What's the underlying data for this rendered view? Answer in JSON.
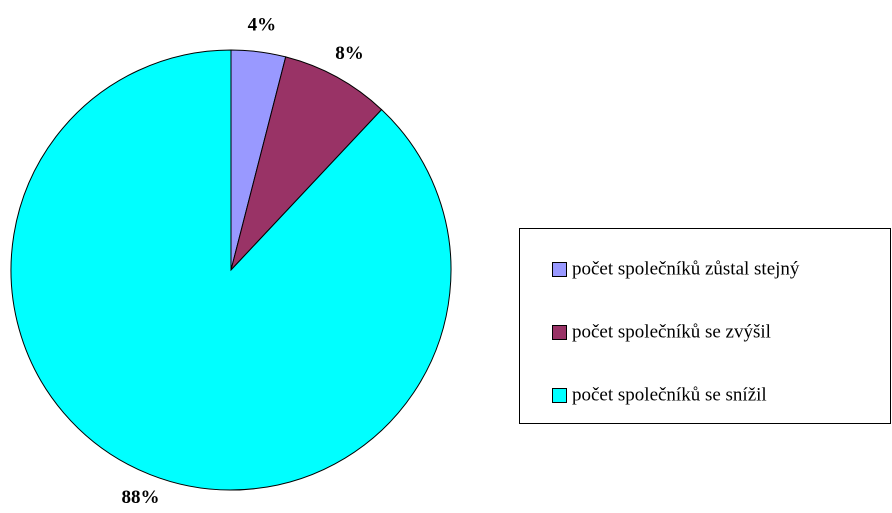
{
  "chart_data": {
    "type": "pie",
    "categories": [
      "počet společníků zůstal stejný",
      "počet společníků se zvýšil",
      "počet společníků se snížil"
    ],
    "values": [
      4,
      8,
      88
    ],
    "value_labels": [
      "4%",
      "8%",
      "88%"
    ],
    "colors": [
      "#9999ff",
      "#993366",
      "#00ffff"
    ],
    "legend": "right"
  }
}
